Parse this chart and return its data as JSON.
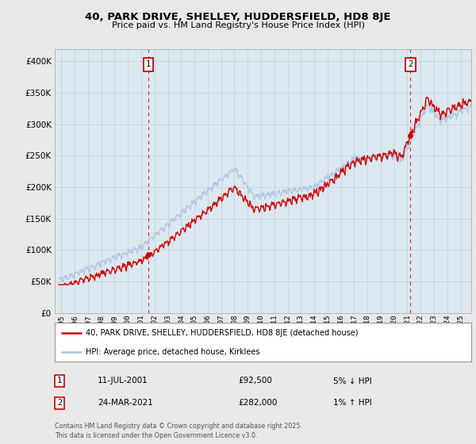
{
  "title": "40, PARK DRIVE, SHELLEY, HUDDERSFIELD, HD8 8JE",
  "subtitle": "Price paid vs. HM Land Registry's House Price Index (HPI)",
  "legend_entry1": "40, PARK DRIVE, SHELLEY, HUDDERSFIELD, HD8 8JE (detached house)",
  "legend_entry2": "HPI: Average price, detached house, Kirklees",
  "annotation1_label": "1",
  "annotation1_date": "11-JUL-2001",
  "annotation1_price": "£92,500",
  "annotation1_hpi": "5% ↓ HPI",
  "annotation2_label": "2",
  "annotation2_date": "24-MAR-2021",
  "annotation2_price": "£282,000",
  "annotation2_hpi": "1% ↑ HPI",
  "footer": "Contains HM Land Registry data © Crown copyright and database right 2025.\nThis data is licensed under the Open Government Licence v3.0.",
  "sale1_year": 2001.53,
  "sale1_price": 92500,
  "sale2_year": 2021.23,
  "sale2_price": 282000,
  "hpi_color": "#aac4e0",
  "price_color": "#cc0000",
  "vline_color": "#cc0000",
  "background_color": "#e8e8e8",
  "plot_bg_color": "#dce8f0",
  "ylim": [
    0,
    420000
  ],
  "xlim_start": 1994.5,
  "xlim_end": 2025.8
}
